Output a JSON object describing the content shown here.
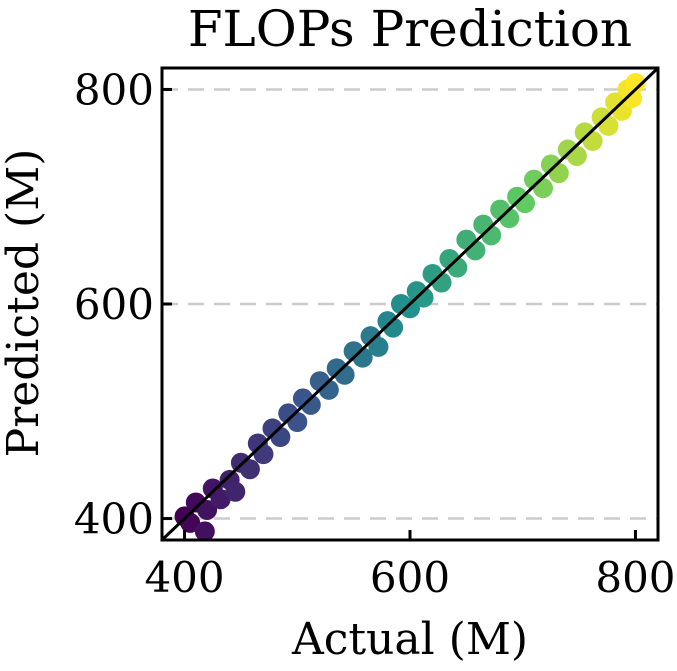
{
  "chart_data": {
    "type": "scatter",
    "title": "FLOPs Prediction",
    "xlabel": "Actual (M)",
    "ylabel": "Predicted (M)",
    "xlim": [
      380,
      820
    ],
    "ylim": [
      380,
      820
    ],
    "xticks": [
      400,
      600,
      800
    ],
    "yticks": [
      400,
      600,
      800
    ],
    "grid": "y-dashed",
    "colormap": "viridis",
    "reference_line": [
      [
        380,
        380
      ],
      [
        820,
        820
      ]
    ],
    "points": [
      {
        "x": 400,
        "y": 402
      },
      {
        "x": 405,
        "y": 396
      },
      {
        "x": 410,
        "y": 415
      },
      {
        "x": 418,
        "y": 388
      },
      {
        "x": 420,
        "y": 408
      },
      {
        "x": 425,
        "y": 428
      },
      {
        "x": 432,
        "y": 418
      },
      {
        "x": 440,
        "y": 436
      },
      {
        "x": 445,
        "y": 425
      },
      {
        "x": 450,
        "y": 452
      },
      {
        "x": 458,
        "y": 446
      },
      {
        "x": 465,
        "y": 470
      },
      {
        "x": 470,
        "y": 460
      },
      {
        "x": 478,
        "y": 484
      },
      {
        "x": 485,
        "y": 476
      },
      {
        "x": 492,
        "y": 498
      },
      {
        "x": 500,
        "y": 490
      },
      {
        "x": 505,
        "y": 512
      },
      {
        "x": 512,
        "y": 506
      },
      {
        "x": 520,
        "y": 528
      },
      {
        "x": 528,
        "y": 520
      },
      {
        "x": 535,
        "y": 540
      },
      {
        "x": 542,
        "y": 534
      },
      {
        "x": 550,
        "y": 556
      },
      {
        "x": 558,
        "y": 550
      },
      {
        "x": 565,
        "y": 570
      },
      {
        "x": 572,
        "y": 560
      },
      {
        "x": 580,
        "y": 584
      },
      {
        "x": 585,
        "y": 578
      },
      {
        "x": 592,
        "y": 600
      },
      {
        "x": 600,
        "y": 596
      },
      {
        "x": 606,
        "y": 612
      },
      {
        "x": 612,
        "y": 606
      },
      {
        "x": 620,
        "y": 628
      },
      {
        "x": 628,
        "y": 620
      },
      {
        "x": 635,
        "y": 642
      },
      {
        "x": 642,
        "y": 634
      },
      {
        "x": 650,
        "y": 660
      },
      {
        "x": 658,
        "y": 650
      },
      {
        "x": 665,
        "y": 674
      },
      {
        "x": 672,
        "y": 664
      },
      {
        "x": 680,
        "y": 688
      },
      {
        "x": 688,
        "y": 680
      },
      {
        "x": 695,
        "y": 700
      },
      {
        "x": 702,
        "y": 694
      },
      {
        "x": 710,
        "y": 716
      },
      {
        "x": 718,
        "y": 708
      },
      {
        "x": 725,
        "y": 730
      },
      {
        "x": 732,
        "y": 722
      },
      {
        "x": 740,
        "y": 744
      },
      {
        "x": 748,
        "y": 738
      },
      {
        "x": 755,
        "y": 760
      },
      {
        "x": 762,
        "y": 752
      },
      {
        "x": 770,
        "y": 774
      },
      {
        "x": 776,
        "y": 766
      },
      {
        "x": 782,
        "y": 788
      },
      {
        "x": 788,
        "y": 780
      },
      {
        "x": 793,
        "y": 800
      },
      {
        "x": 797,
        "y": 792
      },
      {
        "x": 800,
        "y": 806
      }
    ]
  }
}
